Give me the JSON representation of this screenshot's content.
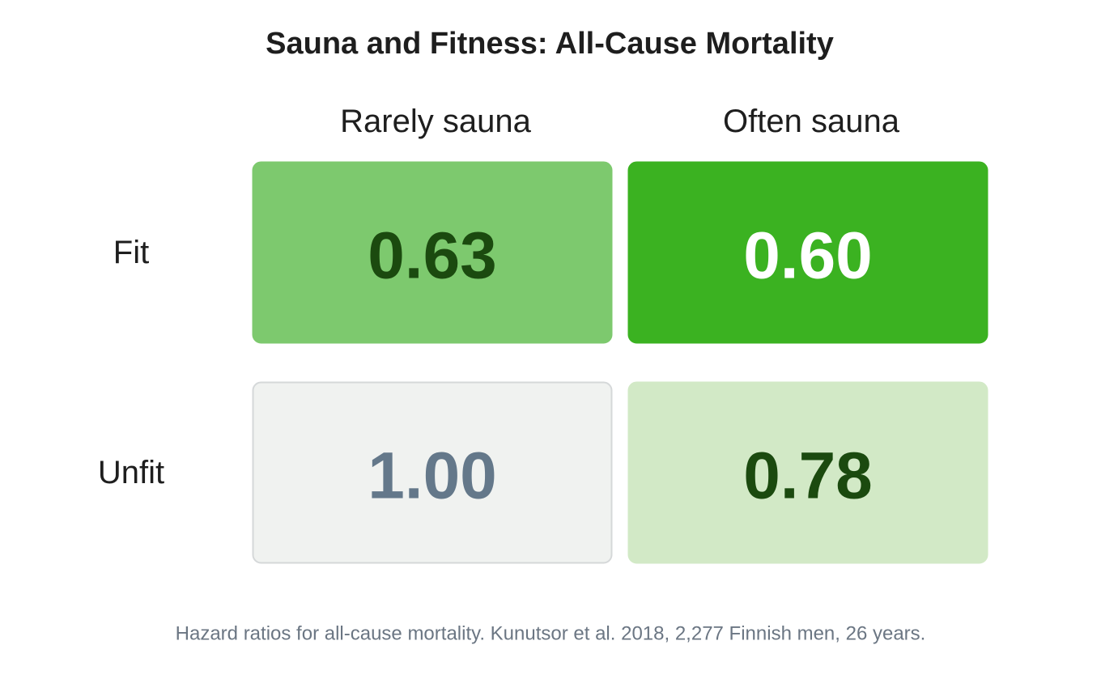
{
  "chart_data": {
    "type": "heatmap",
    "title": "Sauna and Fitness: All-Cause Mortality",
    "x_categories": [
      "Rarely sauna",
      "Often sauna"
    ],
    "y_categories": [
      "Fit",
      "Unfit"
    ],
    "values": [
      [
        0.63,
        0.6
      ],
      [
        1.0,
        0.78
      ]
    ],
    "value_labels": [
      [
        "0.63",
        "0.60"
      ],
      [
        "1.00",
        "0.78"
      ]
    ],
    "cell_colors": [
      [
        "#7dc96e",
        "#3bb221"
      ],
      [
        "#f0f2f0",
        "#d2e9c6"
      ]
    ],
    "cell_stroke_colors": [
      [
        "#7dc96e",
        "#3bb221"
      ],
      [
        "#d5d8d9",
        "#d2e9c6"
      ]
    ],
    "label_colors": [
      [
        "#1b4a0f",
        "#ffffff"
      ],
      [
        "#64788a",
        "#1b4a0f"
      ]
    ],
    "footnote": "Hazard ratios for all-cause mortality. Kunutsor et al. 2018, 2,277 Finnish men, 26 years."
  }
}
